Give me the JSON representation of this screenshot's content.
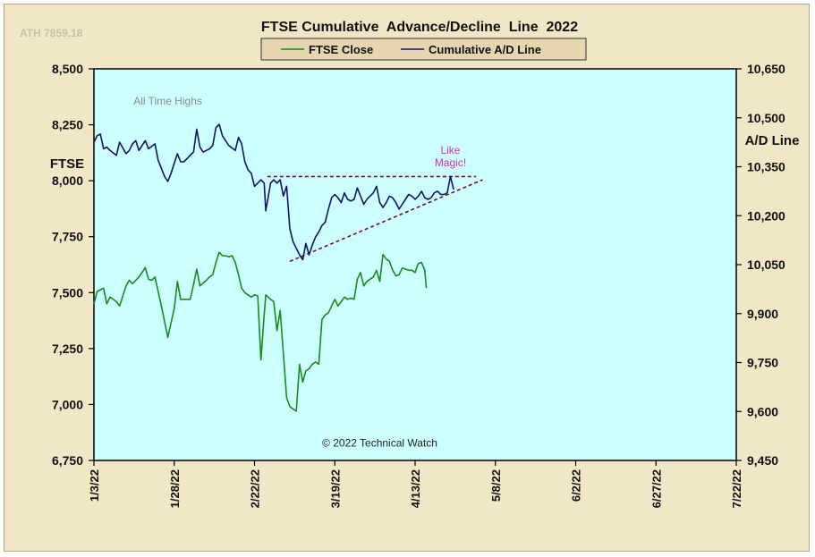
{
  "corner_text": "ATH 7859.18",
  "chart_data": {
    "type": "line",
    "title": "FTSE Cumulative  Advance/Decline  Line  2022",
    "legend_position": "top-center",
    "y_left": {
      "label": "FTSE",
      "ylim": [
        6750,
        8500
      ],
      "ticks": [
        "6,750",
        "7,000",
        "7,250",
        "7,500",
        "7,750",
        "8,000",
        "8,250",
        "8,500"
      ],
      "tick_values": [
        6750,
        7000,
        7250,
        7500,
        7750,
        8000,
        8250,
        8500
      ]
    },
    "y_right": {
      "label": "A/D Line",
      "ylim": [
        9450,
        10650
      ],
      "ticks": [
        "9,450",
        "9,600",
        "9,750",
        "9,900",
        "10,050",
        "10,200",
        "10,350",
        "10,500",
        "10,650"
      ],
      "tick_values": [
        9450,
        9600,
        9750,
        9900,
        10050,
        10200,
        10350,
        10500,
        10650
      ]
    },
    "x": {
      "range_days": [
        0,
        200
      ],
      "ticks": [
        "1/3/22",
        "1/28/22",
        "2/22/22",
        "3/19/22",
        "4/13/22",
        "5/8/22",
        "6/2/22",
        "6/27/22",
        "7/22/22"
      ],
      "tick_days": [
        0,
        25,
        50,
        75,
        100,
        125,
        150,
        175,
        200
      ]
    },
    "series": [
      {
        "name": "FTSE Close",
        "color": "#1a8a1a",
        "axis": "left",
        "points": [
          [
            0,
            7450
          ],
          [
            1,
            7505
          ],
          [
            3,
            7520
          ],
          [
            4,
            7450
          ],
          [
            5,
            7480
          ],
          [
            7,
            7460
          ],
          [
            8,
            7440
          ],
          [
            10,
            7530
          ],
          [
            11,
            7555
          ],
          [
            12,
            7540
          ],
          [
            14,
            7570
          ],
          [
            15,
            7590
          ],
          [
            16,
            7612
          ],
          [
            17,
            7560
          ],
          [
            18,
            7555
          ],
          [
            19,
            7570
          ],
          [
            21,
            7440
          ],
          [
            22,
            7370
          ],
          [
            23,
            7300
          ],
          [
            25,
            7430
          ],
          [
            26,
            7550
          ],
          [
            27,
            7470
          ],
          [
            30,
            7470
          ],
          [
            31,
            7535
          ],
          [
            32,
            7605
          ],
          [
            33,
            7530
          ],
          [
            35,
            7555
          ],
          [
            36,
            7570
          ],
          [
            37,
            7580
          ],
          [
            38,
            7635
          ],
          [
            39,
            7680
          ],
          [
            40,
            7665
          ],
          [
            41,
            7665
          ],
          [
            42,
            7660
          ],
          [
            43,
            7665
          ],
          [
            44,
            7635
          ],
          [
            45,
            7580
          ],
          [
            46,
            7520
          ],
          [
            47,
            7500
          ],
          [
            49,
            7480
          ],
          [
            50,
            7490
          ],
          [
            51,
            7485
          ],
          [
            52,
            7200
          ],
          [
            53,
            7400
          ],
          [
            53.5,
            7490
          ],
          [
            55,
            7470
          ],
          [
            56,
            7460
          ],
          [
            57,
            7330
          ],
          [
            58,
            7420
          ],
          [
            60,
            7030
          ],
          [
            61,
            6990
          ],
          [
            63,
            6970
          ],
          [
            64,
            7180
          ],
          [
            65,
            7100
          ],
          [
            66,
            7150
          ],
          [
            67,
            7160
          ],
          [
            68,
            7180
          ],
          [
            69,
            7190
          ],
          [
            70,
            7180
          ],
          [
            71,
            7380
          ],
          [
            72,
            7400
          ],
          [
            73,
            7410
          ],
          [
            74,
            7440
          ],
          [
            75,
            7470
          ],
          [
            76,
            7440
          ],
          [
            77,
            7460
          ],
          [
            78,
            7480
          ],
          [
            79,
            7470
          ],
          [
            80,
            7475
          ],
          [
            81,
            7470
          ],
          [
            82,
            7560
          ],
          [
            83,
            7590
          ],
          [
            84,
            7530
          ],
          [
            85,
            7550
          ],
          [
            86,
            7560
          ],
          [
            87,
            7570
          ],
          [
            88,
            7600
          ],
          [
            89,
            7550
          ],
          [
            90,
            7670
          ],
          [
            91,
            7650
          ],
          [
            92,
            7640
          ],
          [
            93,
            7600
          ],
          [
            94,
            7575
          ],
          [
            95,
            7580
          ],
          [
            96,
            7610
          ],
          [
            97,
            7605
          ],
          [
            98,
            7600
          ],
          [
            99,
            7600
          ],
          [
            100,
            7590
          ],
          [
            101,
            7630
          ],
          [
            102,
            7635
          ],
          [
            103,
            7600
          ],
          [
            103.5,
            7520
          ]
        ]
      },
      {
        "name": "Cumulative A/D Line",
        "color": "#12126e",
        "axis": "right",
        "points": [
          [
            0,
            10425
          ],
          [
            1,
            10445
          ],
          [
            2,
            10450
          ],
          [
            3,
            10405
          ],
          [
            4,
            10410
          ],
          [
            5,
            10400
          ],
          [
            7,
            10385
          ],
          [
            8,
            10425
          ],
          [
            10,
            10390
          ],
          [
            11,
            10400
          ],
          [
            12,
            10420
          ],
          [
            13,
            10430
          ],
          [
            14,
            10400
          ],
          [
            15,
            10415
          ],
          [
            16,
            10430
          ],
          [
            17,
            10405
          ],
          [
            19,
            10420
          ],
          [
            20,
            10370
          ],
          [
            21,
            10345
          ],
          [
            22,
            10320
          ],
          [
            23,
            10305
          ],
          [
            24,
            10330
          ],
          [
            26,
            10390
          ],
          [
            27,
            10365
          ],
          [
            28,
            10365
          ],
          [
            29,
            10375
          ],
          [
            30,
            10385
          ],
          [
            31,
            10395
          ],
          [
            32,
            10465
          ],
          [
            33,
            10410
          ],
          [
            34,
            10395
          ],
          [
            35,
            10400
          ],
          [
            36,
            10405
          ],
          [
            37,
            10415
          ],
          [
            38,
            10470
          ],
          [
            39,
            10480
          ],
          [
            40,
            10445
          ],
          [
            41,
            10430
          ],
          [
            42,
            10415
          ],
          [
            44,
            10400
          ],
          [
            45,
            10440
          ],
          [
            46,
            10420
          ],
          [
            47,
            10365
          ],
          [
            48,
            10340
          ],
          [
            49,
            10330
          ],
          [
            50,
            10290
          ],
          [
            51,
            10300
          ],
          [
            52,
            10310
          ],
          [
            53,
            10300
          ],
          [
            53.5,
            10215
          ],
          [
            55,
            10300
          ],
          [
            56,
            10310
          ],
          [
            57,
            10300
          ],
          [
            58,
            10310
          ],
          [
            59,
            10260
          ],
          [
            60,
            10290
          ],
          [
            61,
            10160
          ],
          [
            62,
            10120
          ],
          [
            63,
            10100
          ],
          [
            64,
            10080
          ],
          [
            65,
            10065
          ],
          [
            66,
            10115
          ],
          [
            67,
            10080
          ],
          [
            68,
            10110
          ],
          [
            69,
            10135
          ],
          [
            70,
            10150
          ],
          [
            71,
            10170
          ],
          [
            72,
            10180
          ],
          [
            73,
            10220
          ],
          [
            74,
            10255
          ],
          [
            75,
            10265
          ],
          [
            76,
            10255
          ],
          [
            77,
            10240
          ],
          [
            78,
            10270
          ],
          [
            79,
            10250
          ],
          [
            80,
            10245
          ],
          [
            81,
            10250
          ],
          [
            82,
            10285
          ],
          [
            83,
            10260
          ],
          [
            84,
            10235
          ],
          [
            85,
            10250
          ],
          [
            86,
            10260
          ],
          [
            87,
            10270
          ],
          [
            88,
            10290
          ],
          [
            89,
            10240
          ],
          [
            90,
            10225
          ],
          [
            91,
            10240
          ],
          [
            92,
            10260
          ],
          [
            93,
            10255
          ],
          [
            94,
            10240
          ],
          [
            95,
            10220
          ],
          [
            96,
            10235
          ],
          [
            97,
            10250
          ],
          [
            98,
            10265
          ],
          [
            99,
            10260
          ],
          [
            100,
            10250
          ],
          [
            101,
            10260
          ],
          [
            102,
            10275
          ],
          [
            103,
            10255
          ],
          [
            104,
            10250
          ],
          [
            105,
            10255
          ],
          [
            106,
            10270
          ],
          [
            107,
            10275
          ],
          [
            108,
            10265
          ],
          [
            109,
            10265
          ],
          [
            110,
            10270
          ],
          [
            111,
            10320
          ],
          [
            112,
            10280
          ]
        ]
      }
    ],
    "trendlines": [
      {
        "name": "resistance",
        "color": "#7a1020",
        "axis": "right",
        "from": [
          54,
          10320
        ],
        "to": [
          119,
          10320
        ]
      },
      {
        "name": "support",
        "color": "#7a1020",
        "axis": "right",
        "from": [
          61,
          10060
        ],
        "to": [
          121,
          10310
        ]
      }
    ],
    "annotations": [
      {
        "name": "all-time-highs",
        "text": "All Time Highs",
        "x_day": 23,
        "y": 8340,
        "axis": "left",
        "color": "#8a8a8a"
      },
      {
        "name": "like-magic",
        "lines": [
          "Like",
          "Magic!"
        ],
        "x_day": 111,
        "y": 10390,
        "axis": "right",
        "color": "#d22bb8"
      },
      {
        "name": "copyright",
        "text": "© 2022 Technical Watch",
        "x_day": 89,
        "y": 9492,
        "axis": "right",
        "color": "#222222"
      }
    ]
  }
}
